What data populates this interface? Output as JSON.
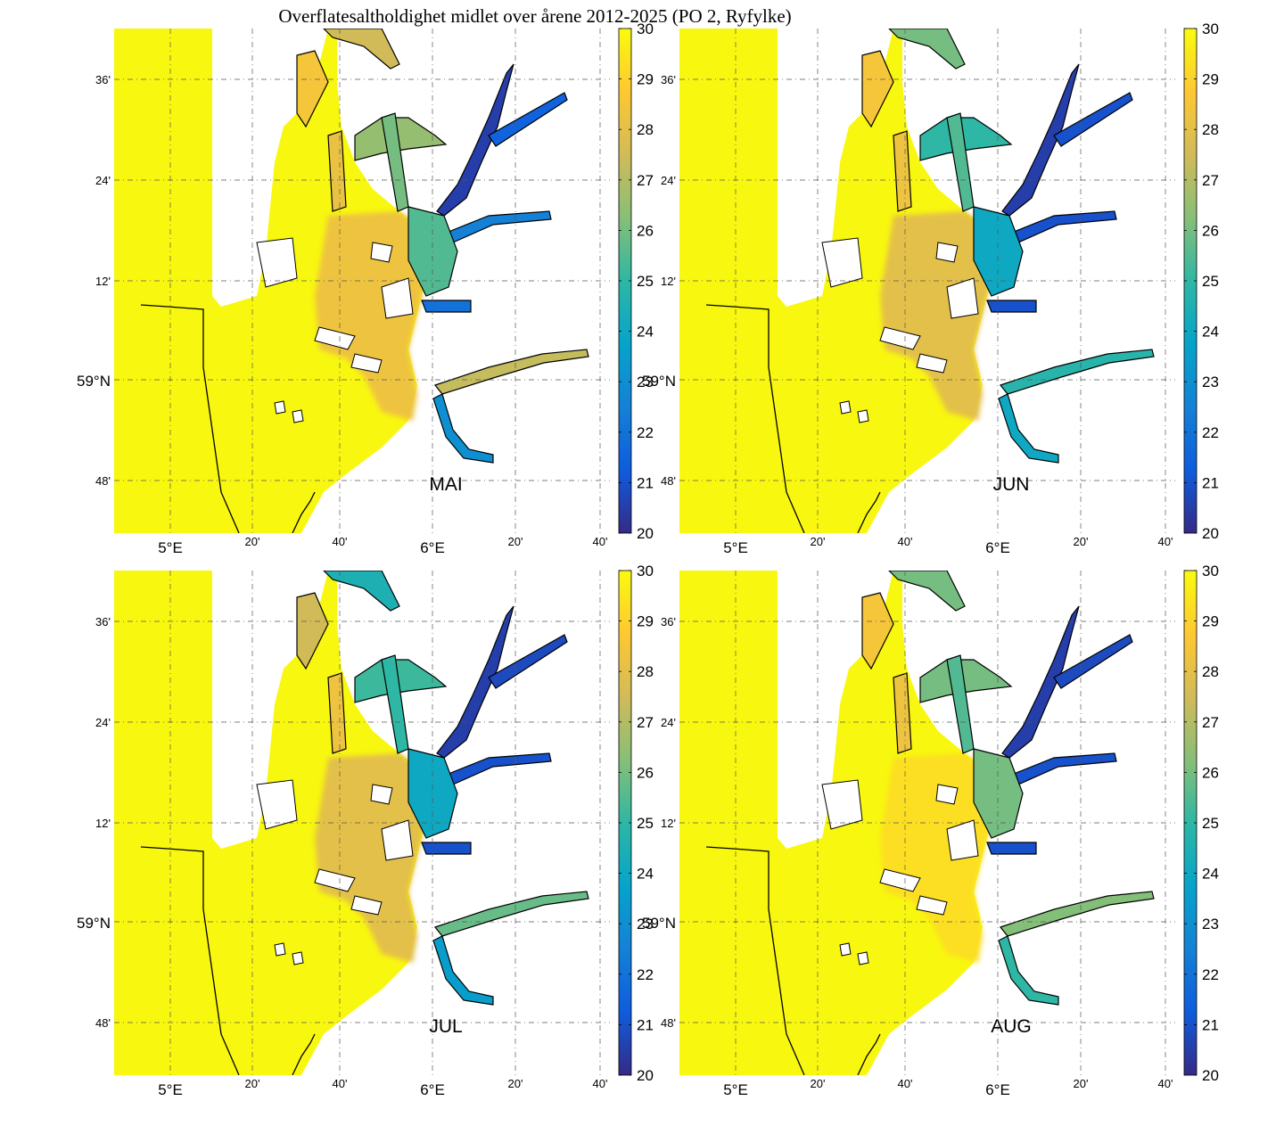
{
  "title": "Overflatesaltholdighet midlet over årene 2012-2025 (PO 2, Ryfylke)",
  "colormap": {
    "name": "parula",
    "stops": [
      "#352a87",
      "#0f5cdd",
      "#1481d6",
      "#06a4ca",
      "#2eb7a4",
      "#87bf77",
      "#d1bb59",
      "#fec832",
      "#f9fb0e"
    ],
    "min": 20,
    "max": 30,
    "ticks": [
      "30",
      "29",
      "28",
      "27",
      "26",
      "25",
      "24",
      "23",
      "22",
      "21",
      "20"
    ]
  },
  "axes": {
    "lon_major_labels": [
      "5°E",
      "6°E"
    ],
    "lon_minor_labels": [
      "20'",
      "40'",
      "20'",
      "40'"
    ],
    "lat_major_label": "59°N",
    "lat_minor_labels": [
      "36'",
      "24'",
      "12'",
      "48'"
    ]
  },
  "panels": [
    {
      "month": "MAI"
    },
    {
      "month": "JUN"
    },
    {
      "month": "JUL"
    },
    {
      "month": "AUG"
    }
  ],
  "colors": {
    "ocean": "#f8f70f",
    "land": "#ffffff",
    "coast": "#000000",
    "grid": "#555555"
  }
}
